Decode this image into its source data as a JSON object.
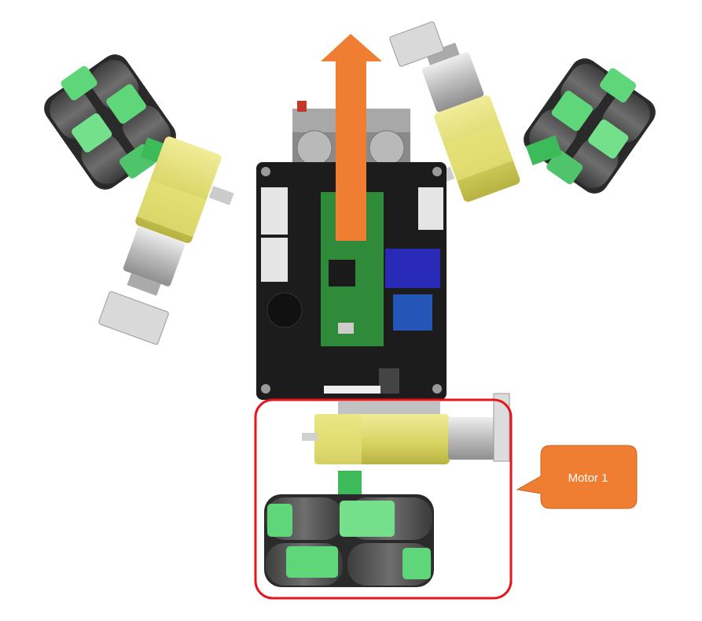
{
  "callout": {
    "label": "Motor 1"
  },
  "colors": {
    "arrow": "#ef7d32",
    "callout_fill": "#ef7d32",
    "highlight_box": "#e8141c",
    "wheel_roller": "#5a5a5a",
    "wheel_hub": "#5fd67a",
    "motor_gearbox": "#e2dd73",
    "motor_can": "#c9c9c9",
    "board": "#1c1c1c",
    "pico": "#2f8a3a"
  },
  "icons": [
    "direction-arrow-icon",
    "omni-wheel-icon",
    "gear-motor-icon",
    "controller-board-icon"
  ]
}
